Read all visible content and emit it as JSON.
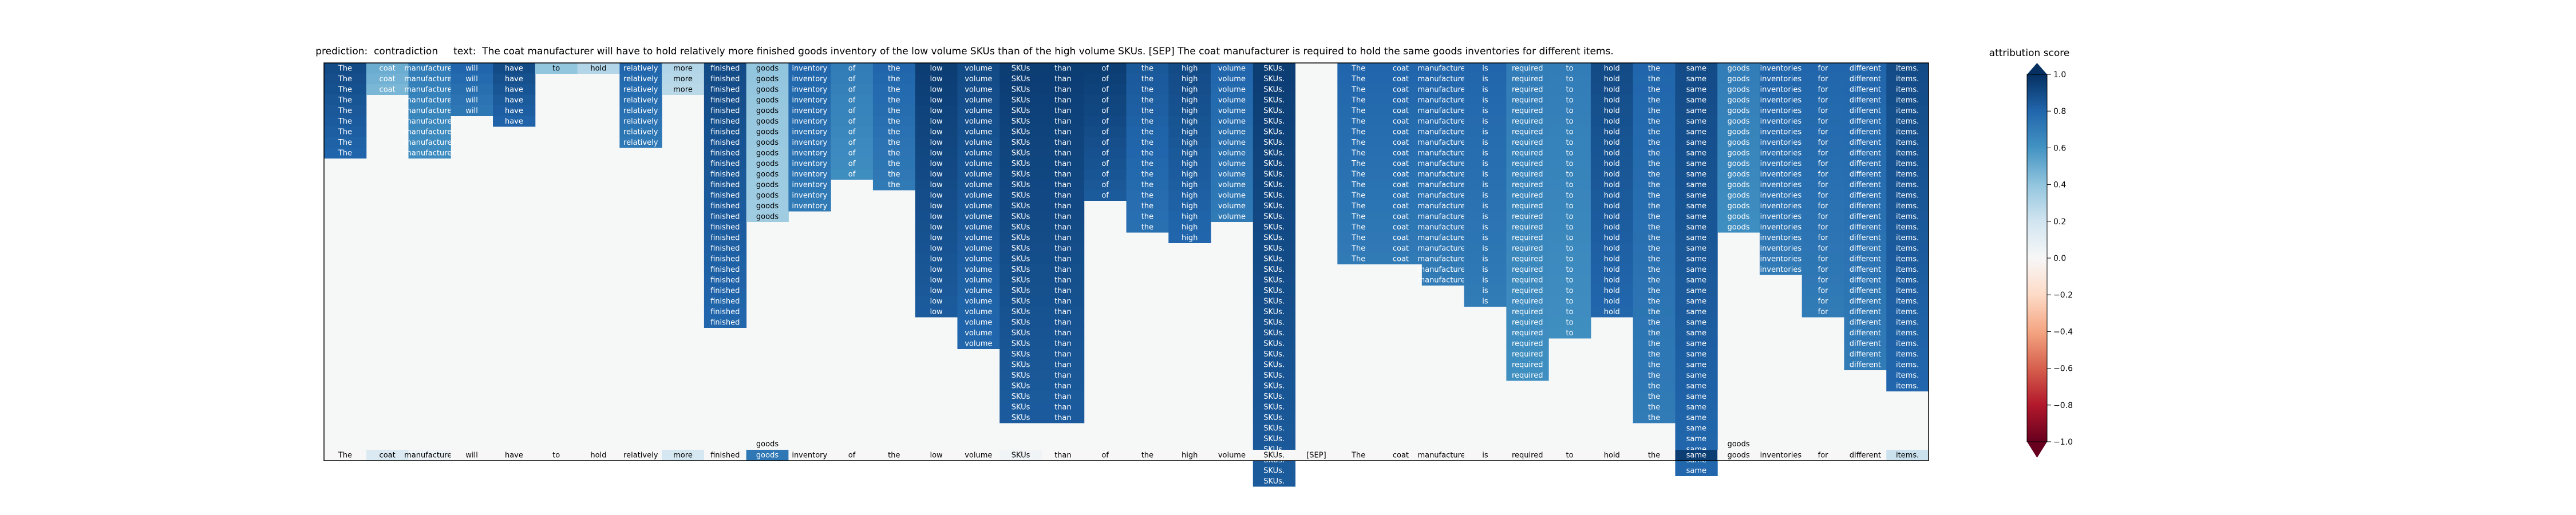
{
  "header": {
    "prediction_label": "prediction:",
    "prediction": "contradiction",
    "text_label": "text:",
    "text": "The coat manufacturer will have to hold relatively more finished goods inventory of the low volume SKUs than of the high volume SKUs. [SEP] The coat manufacturer is required to hold the same goods inventories for different items."
  },
  "chart_data": {
    "type": "heatmap",
    "title": "prediction:  contradiction     text:  The coat manufacturer will have to hold relatively more finished goods inventory of the low volume SKUs than of the high volume SKUs. [SEP] The coat manufacturer is required to hold the same goods inventories for different items.",
    "colorbar": {
      "title": "attribution score",
      "range": [
        -1.0,
        1.0
      ],
      "ticks": [
        -1.0,
        -0.8,
        -0.6,
        -0.4,
        -0.2,
        0.0,
        0.2,
        0.4,
        0.6,
        0.8,
        1.0
      ],
      "tick_labels": [
        "−1.0",
        "−0.8",
        "−0.6",
        "−0.4",
        "−0.2",
        "0.0",
        "0.2",
        "0.4",
        "0.6",
        "0.8",
        "1.0"
      ],
      "colormap": "RdBu"
    },
    "tokens": [
      "The",
      "coat",
      "manufacturer",
      "will",
      "have",
      "to",
      "hold",
      "relatively",
      "more",
      "finished",
      "goods",
      "inventory",
      "of",
      "the",
      "low",
      "volume",
      "SKUs",
      "than",
      "of",
      "the",
      "high",
      "volume",
      "SKUs.",
      "[SEP]",
      "The",
      "coat",
      "manufacturer",
      "is",
      "required",
      "to",
      "hold",
      "the",
      "same",
      "goods",
      "inventories",
      "for",
      "different",
      "items."
    ],
    "column_heights": [
      9,
      3,
      9,
      5,
      6,
      1,
      1,
      8,
      3,
      25,
      15,
      14,
      11,
      12,
      24,
      27,
      34,
      34,
      13,
      16,
      17,
      15,
      40,
      0,
      19,
      19,
      21,
      23,
      30,
      26,
      24,
      34,
      39,
      16,
      20,
      24,
      29,
      31
    ],
    "column_scores": [
      0.9,
      0.5,
      0.7,
      0.8,
      0.9,
      0.4,
      0.3,
      0.8,
      0.3,
      0.9,
      0.4,
      0.8,
      0.7,
      0.8,
      0.95,
      0.9,
      0.95,
      0.95,
      0.95,
      0.85,
      0.9,
      0.8,
      0.95,
      0.0,
      0.8,
      0.8,
      0.8,
      0.8,
      0.7,
      0.7,
      0.9,
      0.8,
      0.9,
      0.7,
      0.8,
      0.8,
      0.8,
      0.9
    ],
    "bottom_scores": [
      0.0,
      0.15,
      0.06,
      0.0,
      0.0,
      0.0,
      0.0,
      0.0,
      0.18,
      0.0,
      0.72,
      0.0,
      0.0,
      0.0,
      0.0,
      0.0,
      0.03,
      0.0,
      0.0,
      0.0,
      0.0,
      0.0,
      0.0,
      0.0,
      0.0,
      0.0,
      0.0,
      0.0,
      0.0,
      0.0,
      0.0,
      0.0,
      0.95,
      0.0,
      0.0,
      0.0,
      0.0,
      0.22
    ],
    "extra_labels": [
      {
        "token_index": 10,
        "text": "goods"
      },
      {
        "token_index": 33,
        "text": "goods"
      }
    ]
  }
}
